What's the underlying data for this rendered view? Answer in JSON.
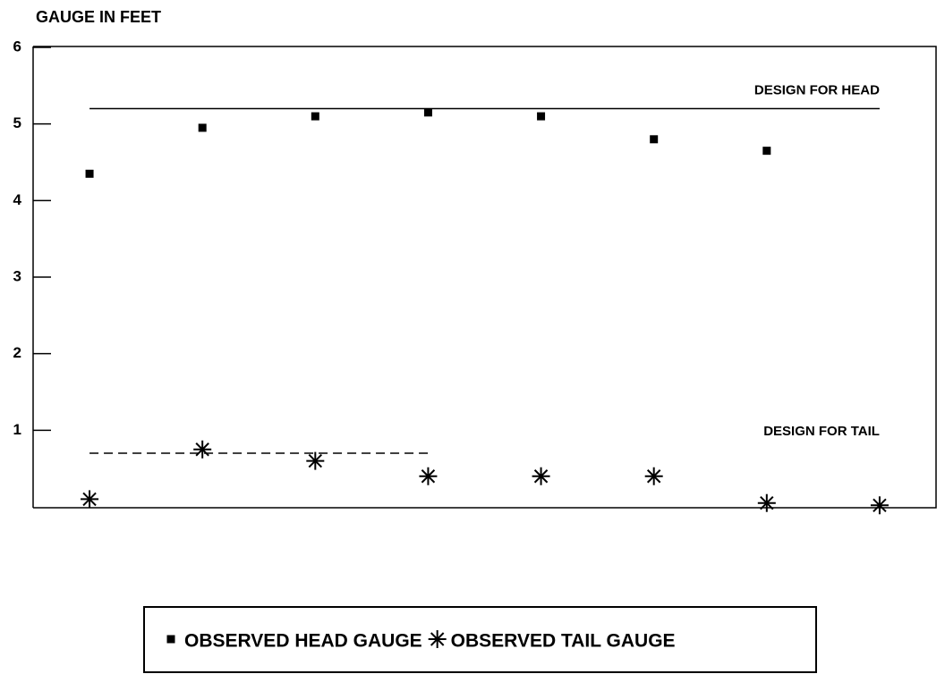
{
  "chart_data": {
    "type": "scatter",
    "title": "GAUGE IN FEET",
    "categories": [
      null,
      null,
      null,
      null,
      null,
      null,
      null,
      null
    ],
    "series": [
      {
        "name": "OBSERVED HEAD GAUGE",
        "color": "#000000",
        "marker": "square",
        "values": [
          4.35,
          4.95,
          5.1,
          5.15,
          5.1,
          4.8,
          4.65,
          null
        ]
      },
      {
        "name": "OBSERVED TAIL GAUGE",
        "color": "#000000",
        "marker": "asterisk",
        "values": [
          0.1,
          0.75,
          0.6,
          0.4,
          0.4,
          0.4,
          0.05,
          0.02
        ]
      },
      {
        "name": "DESIGN FOR HEAD",
        "color": "#000000",
        "style": "solid",
        "values": [
          5.2,
          5.2,
          5.2,
          5.2,
          5.2,
          5.2,
          5.2,
          5.2
        ]
      },
      {
        "name": "DESIGN FOR TAIL",
        "color": "#000000",
        "style": "dashed",
        "values": [
          0.7,
          0.7,
          0.7,
          0.7,
          null,
          null,
          null,
          null
        ]
      }
    ],
    "ylim": [
      0,
      6
    ],
    "yticks": [
      1,
      2,
      3,
      4,
      5,
      6
    ]
  }
}
